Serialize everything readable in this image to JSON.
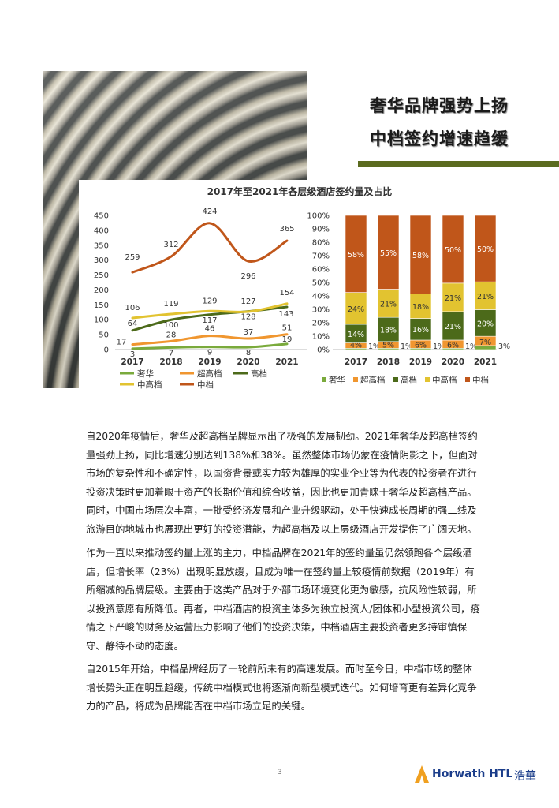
{
  "header": {
    "title_line1": "奢华品牌强势上扬",
    "title_line2": "中档签约增速趋缓"
  },
  "colors": {
    "luxury": "#7aaa3c",
    "upper_upscale": "#f0962f",
    "upscale": "#4c6a1a",
    "upper_midscale": "#e2c330",
    "midscale": "#c0561a",
    "accent_bar": "#5b6b1f"
  },
  "chart_data": [
    {
      "type": "line",
      "title": "2017年至2021年各层级酒店签约量及占比",
      "x": [
        "2017",
        "2018",
        "2019",
        "2020",
        "2021"
      ],
      "ylim": [
        0,
        450
      ],
      "yticks": [
        "0",
        "50",
        "100",
        "150",
        "200",
        "250",
        "300",
        "350",
        "400",
        "450"
      ],
      "grid": false,
      "legend": "bottom",
      "series": [
        {
          "name": "奢华",
          "values": [
            3,
            7,
            9,
            8,
            19
          ],
          "labels": [
            "3",
            "7",
            "9",
            "8",
            "19"
          ]
        },
        {
          "name": "超高档",
          "values": [
            17,
            28,
            46,
            37,
            51
          ],
          "labels": [
            "17",
            "28",
            "46",
            "37",
            "51"
          ]
        },
        {
          "name": "高档",
          "values": [
            64,
            100,
            117,
            128,
            143
          ],
          "labels": [
            "64",
            "100",
            "117",
            "128",
            "143"
          ]
        },
        {
          "name": "中高档",
          "values": [
            106,
            119,
            129,
            127,
            154
          ],
          "labels": [
            "106",
            "119",
            "129",
            "127",
            "154"
          ]
        },
        {
          "name": "中档",
          "values": [
            259,
            312,
            424,
            296,
            365
          ],
          "labels": [
            "259",
            "312",
            "424",
            "296",
            "365"
          ]
        }
      ]
    },
    {
      "type": "bar",
      "stacked": true,
      "categories": [
        "2017",
        "2018",
        "2019",
        "2020",
        "2021"
      ],
      "ylim": [
        0,
        100
      ],
      "yticks": [
        "0%",
        "10%",
        "20%",
        "30%",
        "40%",
        "50%",
        "60%",
        "70%",
        "80%",
        "90%",
        "100%"
      ],
      "legend": "bottom",
      "series": [
        {
          "name": "奢华",
          "values": [
            1,
            1,
            1,
            1,
            3
          ],
          "labels": [
            "1%",
            "1%",
            "1%",
            "1%",
            "3%"
          ]
        },
        {
          "name": "超高档",
          "values": [
            4,
            5,
            6,
            6,
            7
          ],
          "labels": [
            "4%",
            "5%",
            "6%",
            "6%",
            "7%"
          ]
        },
        {
          "name": "高档",
          "values": [
            14,
            18,
            16,
            21,
            20
          ],
          "labels": [
            "14%",
            "18%",
            "16%",
            "21%",
            "20%"
          ]
        },
        {
          "name": "中高档",
          "values": [
            24,
            21,
            18,
            21,
            21
          ],
          "labels": [
            "24%",
            "21%",
            "18%",
            "21%",
            "21%"
          ]
        },
        {
          "name": "中档",
          "values": [
            58,
            55,
            58,
            50,
            50
          ],
          "labels": [
            "58%",
            "55%",
            "58%",
            "50%",
            "50%"
          ]
        }
      ]
    }
  ],
  "body": {
    "p1": "自2020年疫情后，奢华及超高档品牌显示出了极强的发展韧劲。2021年奢华及超高档签约量强劲上扬，同比增速分别达到138%和38%。虽然整体市场仍蒙在疫情阴影之下，但面对市场的复杂性和不确定性，以国资背景或实力较为雄厚的实业企业等为代表的投资者在进行投资决策时更加着眼于资产的长期价值和综合收益，因此也更加青睐于奢华及超高档产品。同时，中国市场层次丰富，一批受经济发展和产业升级驱动，处于快速成长周期的强二线及旅游目的地城市也展现出更好的投资潜能，为超高档及以上层级酒店开发提供了广阔天地。",
    "p2": "作为一直以来推动签约量上涨的主力，中档品牌在2021年的签约量虽仍然领跑各个层级酒店，但增长率（23%）出现明显放缓，且成为唯一在签约量上较疫情前数据（2019年）有所缩减的品牌层级。主要由于这类产品对于外部市场环境变化更为敏感，抗风险性较弱，所以投资意愿有所降低。再者，中档酒店的投资主体多为独立投资人/团体和小型投资公司，疫情之下严峻的财务及运营压力影响了他们的投资决策，中档酒店主要投资者更多持审慎保守、静待不动的态度。",
    "p3": "自2015年开始，中档品牌经历了一轮前所未有的高速发展。而时至今日，中档市场的整体增长势头正在明显趋缓，传统中档模式也将逐渐向新型模式迭代。如何培育更有差异化竞争力的产品，将成为品牌能否在中档市场立足的关键。"
  },
  "footer": {
    "page_number": "3",
    "brand": "Horwath HTL",
    "brand_cn": "浩華",
    "logo_icon": "horwath-triangle-logo-icon"
  }
}
